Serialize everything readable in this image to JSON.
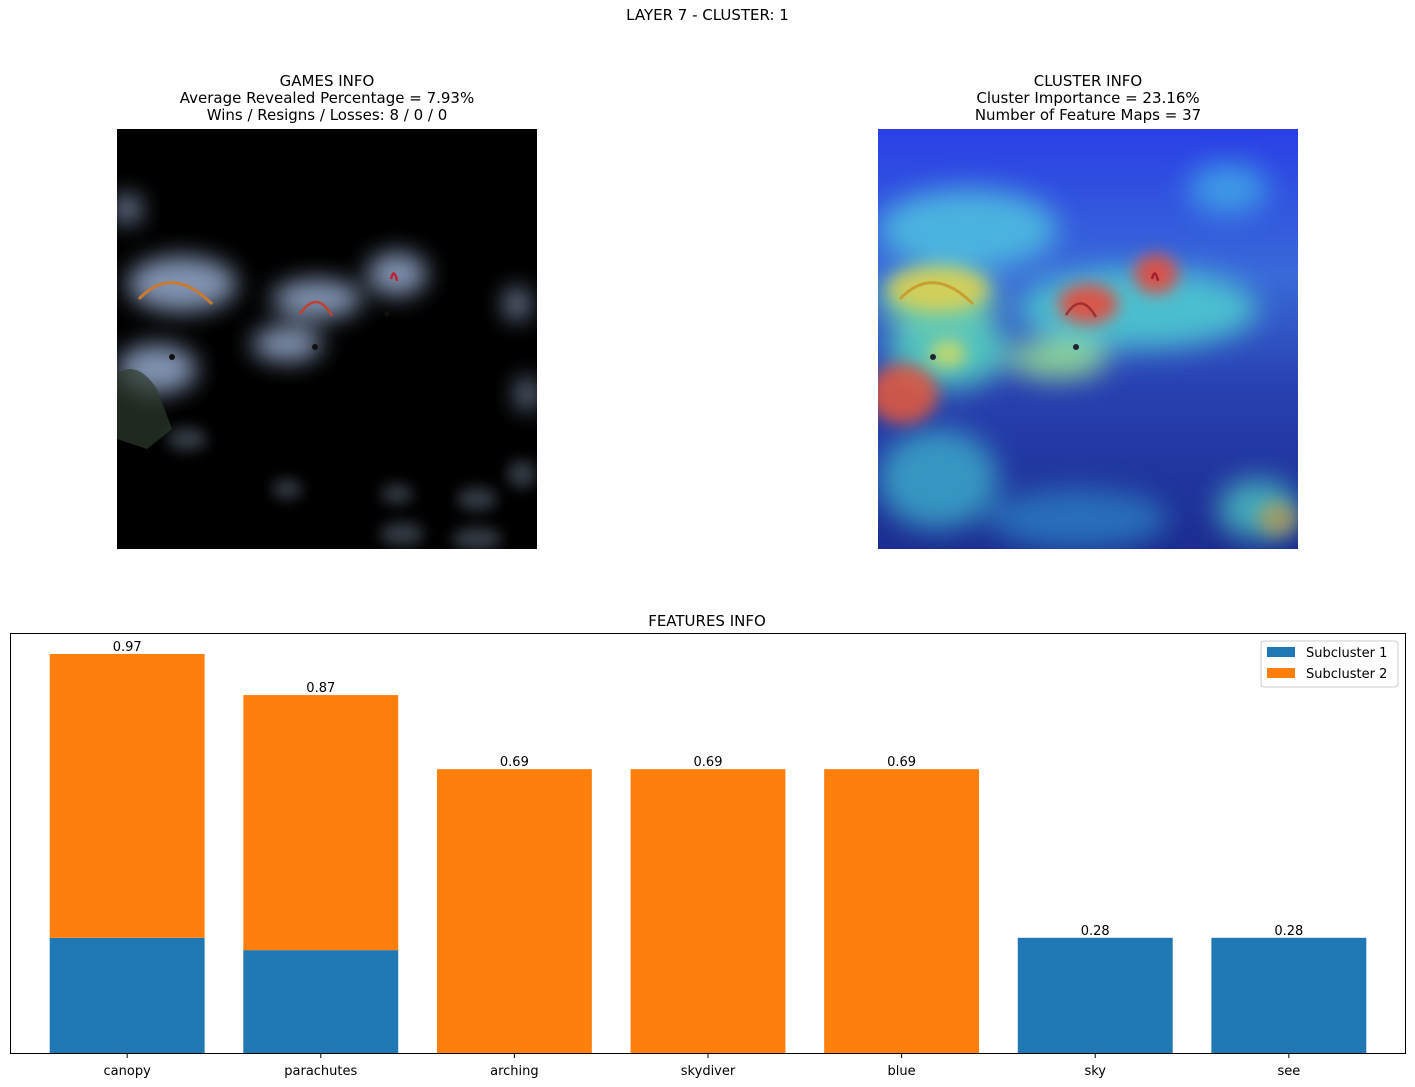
{
  "figure": {
    "suptitle": "LAYER 7 - CLUSTER: 1"
  },
  "games_info": {
    "title": "GAMES INFO",
    "line1": "Average Revealed Percentage = 7.93%",
    "line2": "Wins / Resigns / Losses: 8 / 0 / 0"
  },
  "cluster_info": {
    "title": "CLUSTER INFO",
    "line1": "Cluster Importance = 23.16%",
    "line2": "Number of Feature Maps = 37"
  },
  "colors": {
    "subcluster_1": "#1f77b4",
    "subcluster_2": "#ff7f0e"
  },
  "chart_data": {
    "type": "bar",
    "stacked": true,
    "title": "FEATURES INFO",
    "xlabel": "",
    "ylabel": "",
    "categories": [
      "canopy",
      "parachutes",
      "arching",
      "skydiver",
      "blue",
      "sky",
      "see"
    ],
    "series": [
      {
        "name": "Subcluster 1",
        "values": [
          0.28,
          0.25,
          0,
          0,
          0,
          0.28,
          0.28
        ]
      },
      {
        "name": "Subcluster 2",
        "values": [
          0.69,
          0.62,
          0.69,
          0.69,
          0.69,
          0,
          0
        ]
      }
    ],
    "totals": [
      "0.97",
      "0.87",
      "0.69",
      "0.69",
      "0.69",
      "0.28",
      "0.28"
    ],
    "ylim": [
      0,
      1.0185
    ],
    "y_ticks_shown": false,
    "grid": false,
    "legend": "top-right"
  }
}
